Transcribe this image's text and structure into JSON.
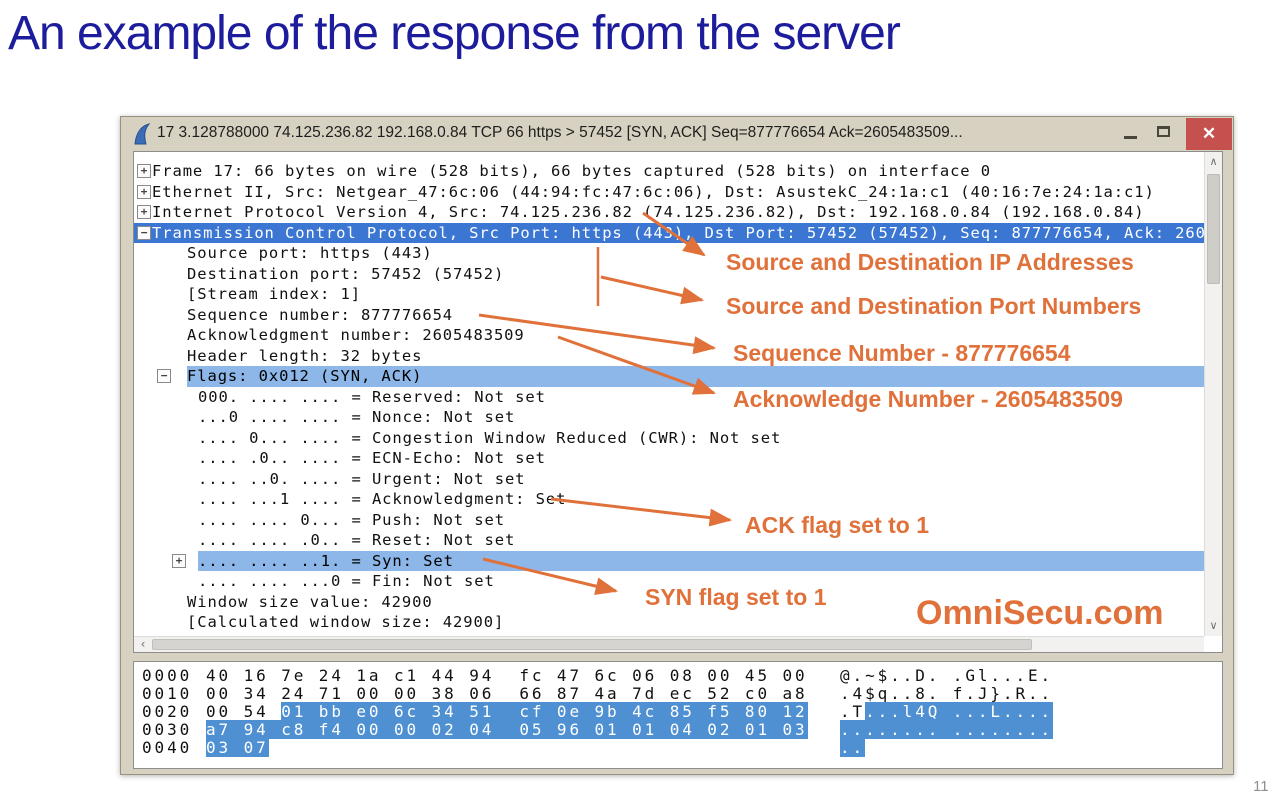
{
  "page": {
    "heading": "An example of the response from the server",
    "page_number": "11"
  },
  "window": {
    "titlebar": {
      "title": "17 3.128788000 74.125.236.82 192.168.0.84 TCP 66 https > 57452 [SYN, ACK] Seq=877776654 Ack=2605483509...",
      "close_glyph": "✕"
    }
  },
  "icons": {
    "wireshark_fin": "wireshark-fin",
    "scroll_up": "∧",
    "scroll_down": "∨",
    "scroll_left": "‹"
  },
  "detail_pane": {
    "rows": [
      {
        "expander": "plus",
        "indent": 0,
        "highlight": null,
        "text": "Frame 17: 66 bytes on wire (528 bits), 66 bytes captured (528 bits) on interface 0"
      },
      {
        "expander": "plus",
        "indent": 0,
        "highlight": null,
        "text": "Ethernet II, Src: Netgear_47:6c:06 (44:94:fc:47:6c:06), Dst: AsustekC_24:1a:c1 (40:16:7e:24:1a:c1)"
      },
      {
        "expander": "plus",
        "indent": 0,
        "highlight": null,
        "text": "Internet Protocol Version 4, Src: 74.125.236.82 (74.125.236.82), Dst: 192.168.0.84 (192.168.0.84)"
      },
      {
        "expander": "minus",
        "indent": 0,
        "highlight": "selected",
        "text": "Transmission Control Protocol, Src Port: https (443), Dst Port: 57452 (57452), Seq: 877776654, Ack: 260"
      },
      {
        "expander": null,
        "indent": 1,
        "highlight": null,
        "text": "Source port: https (443)"
      },
      {
        "expander": null,
        "indent": 1,
        "highlight": null,
        "text": "Destination port: 57452 (57452)"
      },
      {
        "expander": null,
        "indent": 1,
        "highlight": null,
        "text": "[Stream index: 1]"
      },
      {
        "expander": null,
        "indent": 1,
        "highlight": null,
        "text": "Sequence number: 877776654"
      },
      {
        "expander": null,
        "indent": 1,
        "highlight": null,
        "text": "Acknowledgment number: 2605483509"
      },
      {
        "expander": null,
        "indent": 1,
        "highlight": null,
        "text": "Header length: 32 bytes"
      },
      {
        "expander": "minus",
        "indent": 1,
        "highlight": "related",
        "text": "Flags: 0x012 (SYN, ACK)"
      },
      {
        "expander": null,
        "indent": 2,
        "highlight": null,
        "text": "000. .... .... = Reserved: Not set"
      },
      {
        "expander": null,
        "indent": 2,
        "highlight": null,
        "text": "...0 .... .... = Nonce: Not set"
      },
      {
        "expander": null,
        "indent": 2,
        "highlight": null,
        "text": ".... 0... .... = Congestion Window Reduced (CWR): Not set"
      },
      {
        "expander": null,
        "indent": 2,
        "highlight": null,
        "text": ".... .0.. .... = ECN-Echo: Not set"
      },
      {
        "expander": null,
        "indent": 2,
        "highlight": null,
        "text": ".... ..0. .... = Urgent: Not set"
      },
      {
        "expander": null,
        "indent": 2,
        "highlight": null,
        "text": ".... ...1 .... = Acknowledgment: Set"
      },
      {
        "expander": null,
        "indent": 2,
        "highlight": null,
        "text": ".... .... 0... = Push: Not set"
      },
      {
        "expander": null,
        "indent": 2,
        "highlight": null,
        "text": ".... .... .0.. = Reset: Not set"
      },
      {
        "expander": "plus",
        "indent": 2,
        "highlight": "related",
        "text": ".... .... ..1. = Syn: Set"
      },
      {
        "expander": null,
        "indent": 2,
        "highlight": null,
        "text": ".... .... ...0 = Fin: Not set"
      },
      {
        "expander": null,
        "indent": 1,
        "highlight": null,
        "text": "Window size value: 42900"
      },
      {
        "expander": null,
        "indent": 1,
        "highlight": null,
        "text": "[Calculated window size: 42900]"
      }
    ]
  },
  "hex_pane": {
    "rows": [
      {
        "offset": "0000",
        "hex_plain": "40 16 7e 24 1a c1 44 94  fc 47 6c 06 08 00 45 00",
        "hex_hl": "",
        "ascii_plain": "@.~$..D. .Gl...E.",
        "ascii_hl": ""
      },
      {
        "offset": "0010",
        "hex_plain": "00 34 24 71 00 00 38 06  66 87 4a 7d ec 52 c0 a8",
        "hex_hl": "",
        "ascii_plain": ".4$q..8. f.J}.R..",
        "ascii_hl": ""
      },
      {
        "offset": "0020",
        "hex_plain": "00 54 ",
        "hex_hl": "01 bb e0 6c 34 51  cf 0e 9b 4c 85 f5 80 12",
        "ascii_plain": ".T",
        "ascii_hl": "...l4Q ...L...."
      },
      {
        "offset": "0030",
        "hex_plain": "",
        "hex_hl": "a7 94 c8 f4 00 00 02 04  05 96 01 01 04 02 01 03",
        "ascii_plain": "",
        "ascii_hl": "........ ........"
      },
      {
        "offset": "0040",
        "hex_plain": "",
        "hex_hl": "03 07",
        "ascii_plain": "",
        "ascii_hl": ".."
      }
    ]
  },
  "annotations": {
    "ip": "Source and Destination IP Addresses",
    "ports": "Source and Destination Port Numbers",
    "seq": "Sequence Number - 877776654",
    "ack": "Acknowledge Number - 2605483509",
    "ack_flag": "ACK flag set to 1",
    "syn_flag": "SYN flag set to 1",
    "watermark": "OmniSecu.com",
    "accent_color": "#e0713a"
  },
  "colors": {
    "heading": "#1c1c9c",
    "selected_row": "#3b76d3",
    "related_row": "#8db7e8",
    "hex_highlight": "#4f90d2",
    "window_frame": "#d7d1c1",
    "close_button": "#c5514e"
  }
}
